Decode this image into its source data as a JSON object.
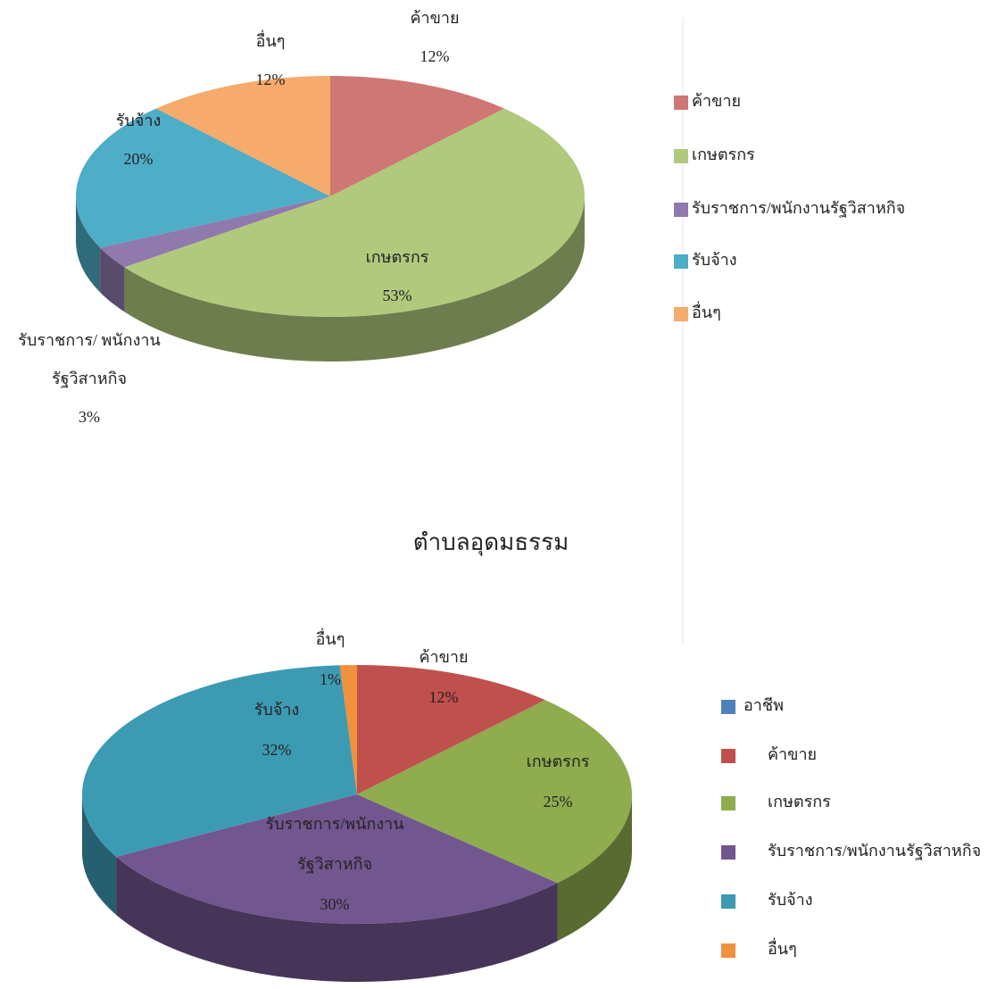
{
  "chart_data": [
    {
      "type": "pie3d",
      "categories": [
        "ค้าขาย",
        "เกษตรกร",
        "รับราชการ/พนักงานรัฐวิสาหกิจ",
        "รับจ้าง",
        "อื่นๆ"
      ],
      "values": [
        12,
        53,
        3,
        20,
        12
      ],
      "value_labels": [
        "12%",
        "53%",
        "3%",
        "20%",
        "12%"
      ],
      "slice_labels": [
        [
          "ค้าขาย"
        ],
        [
          "เกษตรกร"
        ],
        [
          "รับราชการ/ พนักงาน",
          "รัฐวิสาหกิจ"
        ],
        [
          "รับจ้าง"
        ],
        [
          "อื่นๆ"
        ]
      ],
      "colors": [
        "#cf7774",
        "#b1c97c",
        "#9079ad",
        "#4eadc7",
        "#f6aa6c"
      ]
    },
    {
      "type": "pie3d",
      "title": "ตำบลอุดมธรรม",
      "series_name": "อาชีพ",
      "series_color": "#4f81bd",
      "categories": [
        "ค้าขาย",
        "เกษตรกร",
        "รับราชการ/พนักงานรัฐวิสาหกิจ",
        "รับจ้าง",
        "อื่นๆ"
      ],
      "values": [
        12,
        25,
        30,
        32,
        1
      ],
      "value_labels": [
        "12%",
        "25%",
        "30%",
        "32%",
        "1%"
      ],
      "slice_labels": [
        [
          "ค้าขาย"
        ],
        [
          "เกษตรกร"
        ],
        [
          "รับราชการ/พนักงาน",
          "รัฐวิสาหกิจ"
        ],
        [
          "รับจ้าง"
        ],
        [
          "อื่นๆ"
        ]
      ],
      "colors": [
        "#c0504d",
        "#8fac4e",
        "#72568f",
        "#3d9ab3",
        "#f0913d"
      ]
    }
  ]
}
